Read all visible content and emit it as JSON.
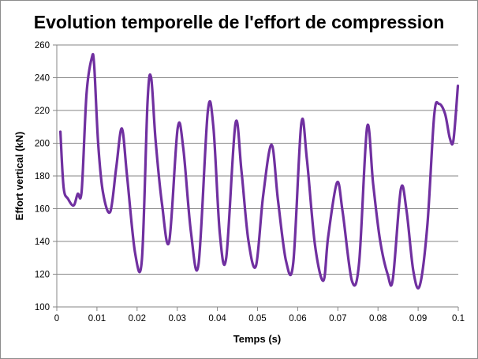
{
  "chart_data": {
    "type": "line",
    "title": "Evolution temporelle de l'effort de compression",
    "xlabel": "Temps (s)",
    "ylabel": "Effort vertical (kN)",
    "xlim": [
      0,
      0.1
    ],
    "ylim": [
      100,
      260
    ],
    "x_ticks": [
      "0",
      "0.01",
      "0.02",
      "0.03",
      "0.04",
      "0.05",
      "0.06",
      "0.07",
      "0.08",
      "0.09",
      "0.1"
    ],
    "y_ticks": [
      "100",
      "120",
      "140",
      "160",
      "180",
      "200",
      "220",
      "240",
      "260"
    ],
    "grid": "horizontal",
    "legend": "none",
    "series": [
      {
        "color": "#7030a0",
        "x": [
          0.0009,
          0.0017,
          0.0028,
          0.0042,
          0.0052,
          0.0062,
          0.0074,
          0.0087,
          0.0093,
          0.0103,
          0.0115,
          0.0133,
          0.0148,
          0.0162,
          0.0175,
          0.0195,
          0.0212,
          0.0226,
          0.0235,
          0.0246,
          0.0262,
          0.028,
          0.0301,
          0.0315,
          0.0334,
          0.0353,
          0.0376,
          0.039,
          0.0406,
          0.0422,
          0.0445,
          0.046,
          0.0477,
          0.0496,
          0.0514,
          0.0535,
          0.0551,
          0.0571,
          0.0589,
          0.0609,
          0.0623,
          0.0643,
          0.0664,
          0.0676,
          0.0698,
          0.0712,
          0.0735,
          0.0753,
          0.0773,
          0.0788,
          0.0805,
          0.0824,
          0.0837,
          0.0857,
          0.0871,
          0.0888,
          0.0904,
          0.0923,
          0.094,
          0.0952,
          0.0967,
          0.0979,
          0.0988,
          0.0999
        ],
        "y": [
          207,
          173,
          166,
          162,
          169,
          171,
          230,
          252,
          248,
          200,
          170,
          158,
          185,
          209,
          180,
          133,
          129,
          225,
          240,
          202,
          163,
          140,
          209,
          197,
          146,
          126,
          219,
          210,
          145,
          130,
          212,
          183,
          141,
          125,
          168,
          199,
          165,
          128,
          127,
          212,
          190,
          138,
          116,
          143,
          176,
          158,
          116,
          127,
          210,
          175,
          141,
          120,
          117,
          172,
          159,
          122,
          113,
          150,
          217,
          224,
          218,
          203,
          202,
          235
        ]
      }
    ]
  }
}
